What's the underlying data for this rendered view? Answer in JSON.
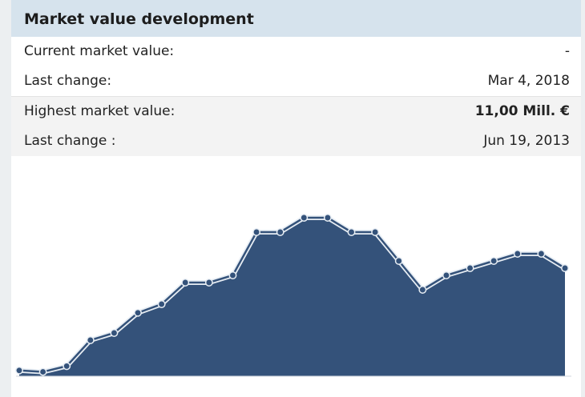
{
  "header": {
    "title": "Market value development"
  },
  "rows": [
    {
      "label": "Current market value:",
      "value": "-"
    },
    {
      "label": "Last change:",
      "value": "Mar 4, 2018"
    },
    {
      "label": "Highest market value:",
      "value": "11,00 Mill. €"
    },
    {
      "label": "Last change :",
      "value": "Jun 19, 2013"
    }
  ],
  "chart_data": {
    "type": "area",
    "categories": [
      null,
      null,
      null,
      null,
      null,
      null,
      null,
      null,
      null,
      null,
      null,
      null,
      null,
      null,
      null,
      null,
      null,
      null,
      null,
      null,
      null,
      null,
      null,
      null
    ],
    "values": [
      0.4,
      0.3,
      0.7,
      2.5,
      3,
      4.4,
      5,
      6.5,
      6.5,
      7,
      10,
      10,
      11,
      11,
      10,
      10,
      8,
      6,
      7,
      7.5,
      8,
      8.5,
      8.5,
      7.5
    ],
    "color": "#34527a"
  }
}
